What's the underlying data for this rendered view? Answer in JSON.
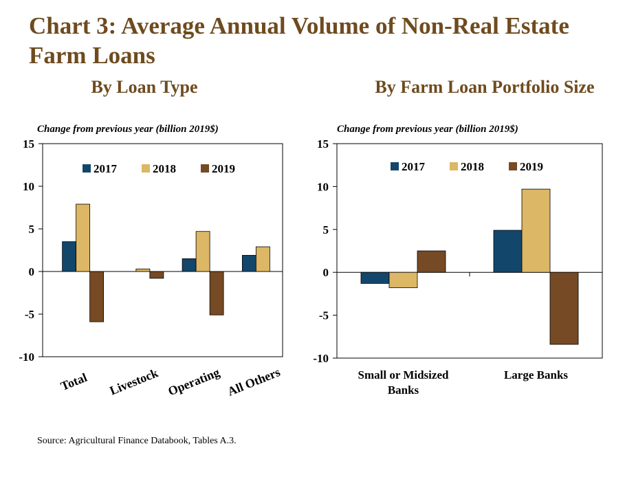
{
  "title": "Chart 3: Average Annual Volume of Non-Real Estate Farm Loans",
  "source": "Source: Agricultural Finance Databook, Tables A.3.",
  "colors": {
    "2017": "#13466b",
    "2018": "#dcb765",
    "2019": "#754a24",
    "title": "#6e4b1f"
  },
  "chart_data": [
    {
      "type": "bar",
      "title": "By Loan Type",
      "ylabel": "Change from previous year (billion 2019$)",
      "categories": [
        "Total",
        "Livestock",
        "Operating",
        "All Others"
      ],
      "series": [
        {
          "name": "2017",
          "values": [
            3.5,
            0,
            1.5,
            1.9
          ]
        },
        {
          "name": "2018",
          "values": [
            7.9,
            0.3,
            4.7,
            2.9
          ]
        },
        {
          "name": "2019",
          "values": [
            -5.9,
            -0.8,
            -5.1,
            0
          ]
        }
      ],
      "ylim": [
        -10,
        15
      ],
      "yticks": [
        "15",
        "10",
        "5",
        "0",
        "-5",
        "-10"
      ],
      "legend": "top"
    },
    {
      "type": "bar",
      "title": "By Farm Loan Portfolio Size",
      "ylabel": "Change from previous year (billion 2019$)",
      "categories": [
        "Small or Midsized Banks",
        "Large Banks"
      ],
      "series": [
        {
          "name": "2017",
          "values": [
            -1.3,
            4.9
          ]
        },
        {
          "name": "2018",
          "values": [
            -1.8,
            9.7
          ]
        },
        {
          "name": "2019",
          "values": [
            2.5,
            -8.4
          ]
        }
      ],
      "ylim": [
        -10,
        15
      ],
      "yticks": [
        "15",
        "10",
        "5",
        "0",
        "-5",
        "-10"
      ],
      "legend": "top"
    }
  ]
}
